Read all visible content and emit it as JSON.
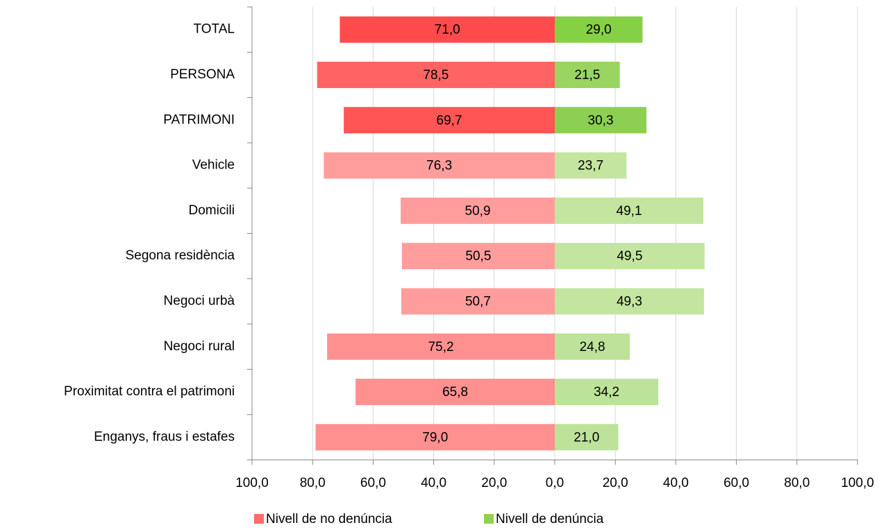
{
  "chart_data": {
    "type": "diverging-bar",
    "categories": [
      "TOTAL",
      "PERSONA",
      "PATRIMONI",
      "Vehicle",
      "Domicili",
      "Segona residència",
      "Negoci urbà",
      "Negoci rural",
      "Proximitat contra el patrimoni",
      "Enganys, fraus i estafes"
    ],
    "series": [
      {
        "name": "Nivell de no denúncia",
        "color": "#ff6b6b",
        "colors": [
          "#ff4b4b",
          "#ff6464",
          "#ff5555",
          "#ff9d9d",
          "#ff9d9d",
          "#ff9d9d",
          "#ff9d9d",
          "#ff9090",
          "#ff9090",
          "#ff9090"
        ],
        "values": [
          -71.0,
          -78.5,
          -69.7,
          -76.3,
          -50.9,
          -50.5,
          -50.7,
          -75.2,
          -65.8,
          -79.0
        ],
        "value_labels": [
          "71,0",
          "78,5",
          "69,7",
          "76,3",
          "50,9",
          "50,5",
          "50,7",
          "75,2",
          "65,8",
          "79,0"
        ]
      },
      {
        "name": "Nivell de denúncia",
        "color": "#92d050",
        "colors": [
          "#86d046",
          "#9ad461",
          "#8ccf52",
          "#c3e5a0",
          "#c3e5a0",
          "#c3e5a0",
          "#c3e5a0",
          "#bde29a",
          "#bde29a",
          "#bde29a"
        ],
        "values": [
          29.0,
          21.5,
          30.3,
          23.7,
          49.1,
          49.5,
          49.3,
          24.8,
          34.2,
          21.0
        ],
        "value_labels": [
          "29,0",
          "21,5",
          "30,3",
          "23,7",
          "49,1",
          "49,5",
          "49,3",
          "24,8",
          "34,2",
          "21,0"
        ]
      }
    ],
    "xlim": [
      -100,
      100
    ],
    "xticks": [
      {
        "value": -100,
        "label": "100,0"
      },
      {
        "value": -80,
        "label": "80,0"
      },
      {
        "value": -60,
        "label": "60,0"
      },
      {
        "value": -40,
        "label": "40,0"
      },
      {
        "value": -20,
        "label": "20,0"
      },
      {
        "value": 0,
        "label": "0,0"
      },
      {
        "value": 20,
        "label": "20,0"
      },
      {
        "value": 40,
        "label": "40,0"
      },
      {
        "value": 60,
        "label": "60,0"
      },
      {
        "value": 80,
        "label": "80,0"
      },
      {
        "value": 100,
        "label": "100,0"
      }
    ],
    "grid": true,
    "legend": "bottom"
  }
}
